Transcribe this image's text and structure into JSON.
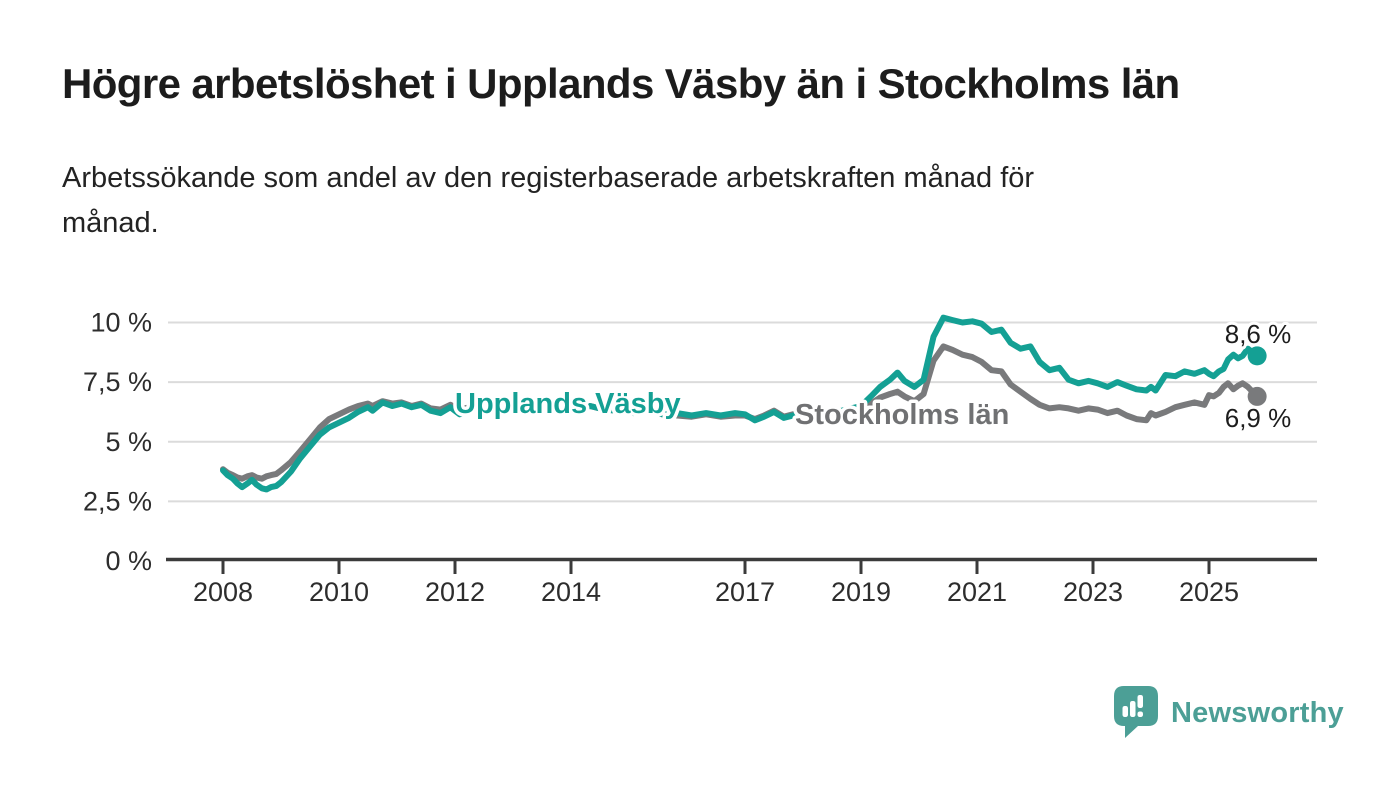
{
  "header": {
    "title": "Högre arbetslöshet i Upplands Väsby än i Stockholms län",
    "subtitle": "Arbetssökande som andel av den registerbaserade arbetskraften månad för månad."
  },
  "chart_data": {
    "type": "line",
    "title": "Högre arbetslöshet i Upplands Väsby än i Stockholms län",
    "subtitle": "Arbetssökande som andel av den registerbaserade arbetskraften månad för månad.",
    "unit": "%",
    "xlim": [
      2007.0,
      2026.9
    ],
    "ylim": [
      0,
      10.5
    ],
    "grid": "horizontal",
    "legend_position": "inline-on-line",
    "x_ticks": [
      {
        "year": 2008,
        "label": "2008"
      },
      {
        "year": 2010,
        "label": "2010"
      },
      {
        "year": 2012,
        "label": "2012"
      },
      {
        "year": 2014,
        "label": "2014"
      },
      {
        "year": 2017,
        "label": "2017"
      },
      {
        "year": 2019,
        "label": "2019"
      },
      {
        "year": 2021,
        "label": "2021"
      },
      {
        "year": 2023,
        "label": "2023"
      },
      {
        "year": 2025,
        "label": "2025"
      }
    ],
    "y_ticks": [
      {
        "value": 0,
        "label": "0 %"
      },
      {
        "value": 2.5,
        "label": "2,5 %"
      },
      {
        "value": 5,
        "label": "5 %"
      },
      {
        "value": 7.5,
        "label": "7,5 %"
      },
      {
        "value": 10,
        "label": "10 %"
      }
    ],
    "series": [
      {
        "name": "Upplands Väsby",
        "color": "#14a094",
        "end_label": "8,6 %",
        "last_value": 8.6,
        "points": [
          [
            2008.0,
            3.8
          ],
          [
            2008.08,
            3.6
          ],
          [
            2008.17,
            3.45
          ],
          [
            2008.25,
            3.25
          ],
          [
            2008.33,
            3.1
          ],
          [
            2008.42,
            3.25
          ],
          [
            2008.5,
            3.4
          ],
          [
            2008.58,
            3.2
          ],
          [
            2008.67,
            3.05
          ],
          [
            2008.75,
            3.0
          ],
          [
            2008.83,
            3.1
          ],
          [
            2008.92,
            3.15
          ],
          [
            2009.0,
            3.3
          ],
          [
            2009.17,
            3.75
          ],
          [
            2009.33,
            4.3
          ],
          [
            2009.5,
            4.8
          ],
          [
            2009.67,
            5.3
          ],
          [
            2009.83,
            5.6
          ],
          [
            2010.0,
            5.8
          ],
          [
            2010.17,
            6.0
          ],
          [
            2010.33,
            6.25
          ],
          [
            2010.5,
            6.45
          ],
          [
            2010.58,
            6.3
          ],
          [
            2010.75,
            6.65
          ],
          [
            2010.92,
            6.5
          ],
          [
            2011.08,
            6.6
          ],
          [
            2011.25,
            6.45
          ],
          [
            2011.42,
            6.55
          ],
          [
            2011.58,
            6.3
          ],
          [
            2011.75,
            6.2
          ],
          [
            2011.92,
            6.45
          ],
          [
            2012.08,
            6.15
          ],
          [
            2012.33,
            6.35
          ],
          [
            2012.58,
            6.45
          ],
          [
            2012.83,
            6.3
          ],
          [
            2013.08,
            6.5
          ],
          [
            2013.33,
            6.4
          ],
          [
            2013.58,
            6.55
          ],
          [
            2013.83,
            6.45
          ],
          [
            2014.08,
            6.4
          ],
          [
            2014.33,
            6.5
          ],
          [
            2014.58,
            6.35
          ],
          [
            2014.83,
            6.3
          ],
          [
            2015.08,
            6.2
          ],
          [
            2015.33,
            6.3
          ],
          [
            2015.58,
            6.15
          ],
          [
            2015.83,
            6.2
          ],
          [
            2016.08,
            6.1
          ],
          [
            2016.33,
            6.2
          ],
          [
            2016.58,
            6.1
          ],
          [
            2016.83,
            6.2
          ],
          [
            2017.0,
            6.15
          ],
          [
            2017.17,
            5.9
          ],
          [
            2017.33,
            6.05
          ],
          [
            2017.5,
            6.25
          ],
          [
            2017.67,
            6.0
          ],
          [
            2017.83,
            6.1
          ],
          [
            2018.0,
            6.05
          ],
          [
            2018.17,
            6.2
          ],
          [
            2018.33,
            6.3
          ],
          [
            2018.5,
            6.25
          ],
          [
            2018.67,
            6.3
          ],
          [
            2018.83,
            6.4
          ],
          [
            2019.0,
            6.5
          ],
          [
            2019.17,
            6.9
          ],
          [
            2019.33,
            7.3
          ],
          [
            2019.5,
            7.6
          ],
          [
            2019.63,
            7.9
          ],
          [
            2019.75,
            7.55
          ],
          [
            2019.92,
            7.3
          ],
          [
            2020.08,
            7.6
          ],
          [
            2020.25,
            9.4
          ],
          [
            2020.42,
            10.2
          ],
          [
            2020.58,
            10.1
          ],
          [
            2020.75,
            10.0
          ],
          [
            2020.92,
            10.05
          ],
          [
            2021.08,
            9.95
          ],
          [
            2021.25,
            9.6
          ],
          [
            2021.42,
            9.7
          ],
          [
            2021.58,
            9.15
          ],
          [
            2021.75,
            8.9
          ],
          [
            2021.92,
            9.0
          ],
          [
            2022.08,
            8.35
          ],
          [
            2022.25,
            8.0
          ],
          [
            2022.42,
            8.1
          ],
          [
            2022.58,
            7.6
          ],
          [
            2022.75,
            7.45
          ],
          [
            2022.92,
            7.55
          ],
          [
            2023.08,
            7.45
          ],
          [
            2023.25,
            7.3
          ],
          [
            2023.42,
            7.5
          ],
          [
            2023.58,
            7.35
          ],
          [
            2023.75,
            7.2
          ],
          [
            2023.92,
            7.15
          ],
          [
            2024.0,
            7.3
          ],
          [
            2024.08,
            7.15
          ],
          [
            2024.25,
            7.8
          ],
          [
            2024.42,
            7.75
          ],
          [
            2024.58,
            7.95
          ],
          [
            2024.75,
            7.85
          ],
          [
            2024.92,
            8.0
          ],
          [
            2025.0,
            7.85
          ],
          [
            2025.08,
            7.75
          ],
          [
            2025.17,
            7.95
          ],
          [
            2025.25,
            8.05
          ],
          [
            2025.33,
            8.45
          ],
          [
            2025.42,
            8.65
          ],
          [
            2025.5,
            8.5
          ],
          [
            2025.58,
            8.6
          ],
          [
            2025.67,
            8.9
          ],
          [
            2025.75,
            8.75
          ],
          [
            2025.83,
            8.6
          ]
        ]
      },
      {
        "name": "Stockholms län",
        "color": "#797a7c",
        "end_label": "6,9 %",
        "last_value": 6.9,
        "points": [
          [
            2008.0,
            3.85
          ],
          [
            2008.08,
            3.7
          ],
          [
            2008.17,
            3.6
          ],
          [
            2008.25,
            3.5
          ],
          [
            2008.33,
            3.45
          ],
          [
            2008.42,
            3.55
          ],
          [
            2008.5,
            3.6
          ],
          [
            2008.58,
            3.5
          ],
          [
            2008.67,
            3.45
          ],
          [
            2008.75,
            3.55
          ],
          [
            2008.83,
            3.6
          ],
          [
            2008.92,
            3.65
          ],
          [
            2009.0,
            3.8
          ],
          [
            2009.17,
            4.15
          ],
          [
            2009.33,
            4.6
          ],
          [
            2009.5,
            5.1
          ],
          [
            2009.67,
            5.6
          ],
          [
            2009.83,
            5.95
          ],
          [
            2010.0,
            6.15
          ],
          [
            2010.17,
            6.35
          ],
          [
            2010.33,
            6.5
          ],
          [
            2010.5,
            6.6
          ],
          [
            2010.58,
            6.5
          ],
          [
            2010.75,
            6.7
          ],
          [
            2010.92,
            6.6
          ],
          [
            2011.08,
            6.65
          ],
          [
            2011.25,
            6.5
          ],
          [
            2011.42,
            6.6
          ],
          [
            2011.58,
            6.4
          ],
          [
            2011.75,
            6.35
          ],
          [
            2011.92,
            6.55
          ],
          [
            2012.08,
            6.35
          ],
          [
            2012.33,
            6.5
          ],
          [
            2012.58,
            6.6
          ],
          [
            2012.83,
            6.45
          ],
          [
            2013.08,
            6.6
          ],
          [
            2013.33,
            6.5
          ],
          [
            2013.58,
            6.6
          ],
          [
            2013.83,
            6.5
          ],
          [
            2014.08,
            6.45
          ],
          [
            2014.33,
            6.5
          ],
          [
            2014.58,
            6.35
          ],
          [
            2014.83,
            6.3
          ],
          [
            2015.08,
            6.25
          ],
          [
            2015.33,
            6.3
          ],
          [
            2015.58,
            6.15
          ],
          [
            2015.83,
            6.1
          ],
          [
            2016.08,
            6.05
          ],
          [
            2016.33,
            6.15
          ],
          [
            2016.58,
            6.05
          ],
          [
            2016.83,
            6.1
          ],
          [
            2017.0,
            6.1
          ],
          [
            2017.17,
            5.95
          ],
          [
            2017.33,
            6.1
          ],
          [
            2017.5,
            6.3
          ],
          [
            2017.67,
            6.05
          ],
          [
            2017.83,
            6.15
          ],
          [
            2018.0,
            6.1
          ],
          [
            2018.17,
            6.25
          ],
          [
            2018.33,
            6.3
          ],
          [
            2018.5,
            6.2
          ],
          [
            2018.67,
            6.25
          ],
          [
            2018.83,
            6.3
          ],
          [
            2019.0,
            6.35
          ],
          [
            2019.17,
            6.6
          ],
          [
            2019.33,
            6.85
          ],
          [
            2019.5,
            7.0
          ],
          [
            2019.63,
            7.1
          ],
          [
            2019.75,
            6.9
          ],
          [
            2019.92,
            6.7
          ],
          [
            2020.08,
            7.0
          ],
          [
            2020.25,
            8.4
          ],
          [
            2020.42,
            9.0
          ],
          [
            2020.58,
            8.85
          ],
          [
            2020.75,
            8.65
          ],
          [
            2020.92,
            8.55
          ],
          [
            2021.08,
            8.35
          ],
          [
            2021.25,
            8.0
          ],
          [
            2021.42,
            7.95
          ],
          [
            2021.58,
            7.4
          ],
          [
            2021.75,
            7.1
          ],
          [
            2021.92,
            6.8
          ],
          [
            2022.08,
            6.55
          ],
          [
            2022.25,
            6.4
          ],
          [
            2022.42,
            6.45
          ],
          [
            2022.58,
            6.4
          ],
          [
            2022.75,
            6.3
          ],
          [
            2022.92,
            6.4
          ],
          [
            2023.08,
            6.35
          ],
          [
            2023.25,
            6.2
          ],
          [
            2023.42,
            6.3
          ],
          [
            2023.58,
            6.1
          ],
          [
            2023.75,
            5.95
          ],
          [
            2023.92,
            5.9
          ],
          [
            2024.0,
            6.2
          ],
          [
            2024.08,
            6.1
          ],
          [
            2024.25,
            6.25
          ],
          [
            2024.42,
            6.45
          ],
          [
            2024.58,
            6.55
          ],
          [
            2024.75,
            6.65
          ],
          [
            2024.92,
            6.55
          ],
          [
            2025.0,
            6.95
          ],
          [
            2025.08,
            6.9
          ],
          [
            2025.17,
            7.05
          ],
          [
            2025.25,
            7.3
          ],
          [
            2025.33,
            7.45
          ],
          [
            2025.42,
            7.2
          ],
          [
            2025.5,
            7.35
          ],
          [
            2025.58,
            7.45
          ],
          [
            2025.67,
            7.3
          ],
          [
            2025.75,
            7.1
          ],
          [
            2025.83,
            6.9
          ]
        ]
      }
    ]
  },
  "footer": {
    "brand": "Newsworthy",
    "logo_icon": "bar-chart-speech-bubble",
    "brand_color": "#4c9f96"
  }
}
